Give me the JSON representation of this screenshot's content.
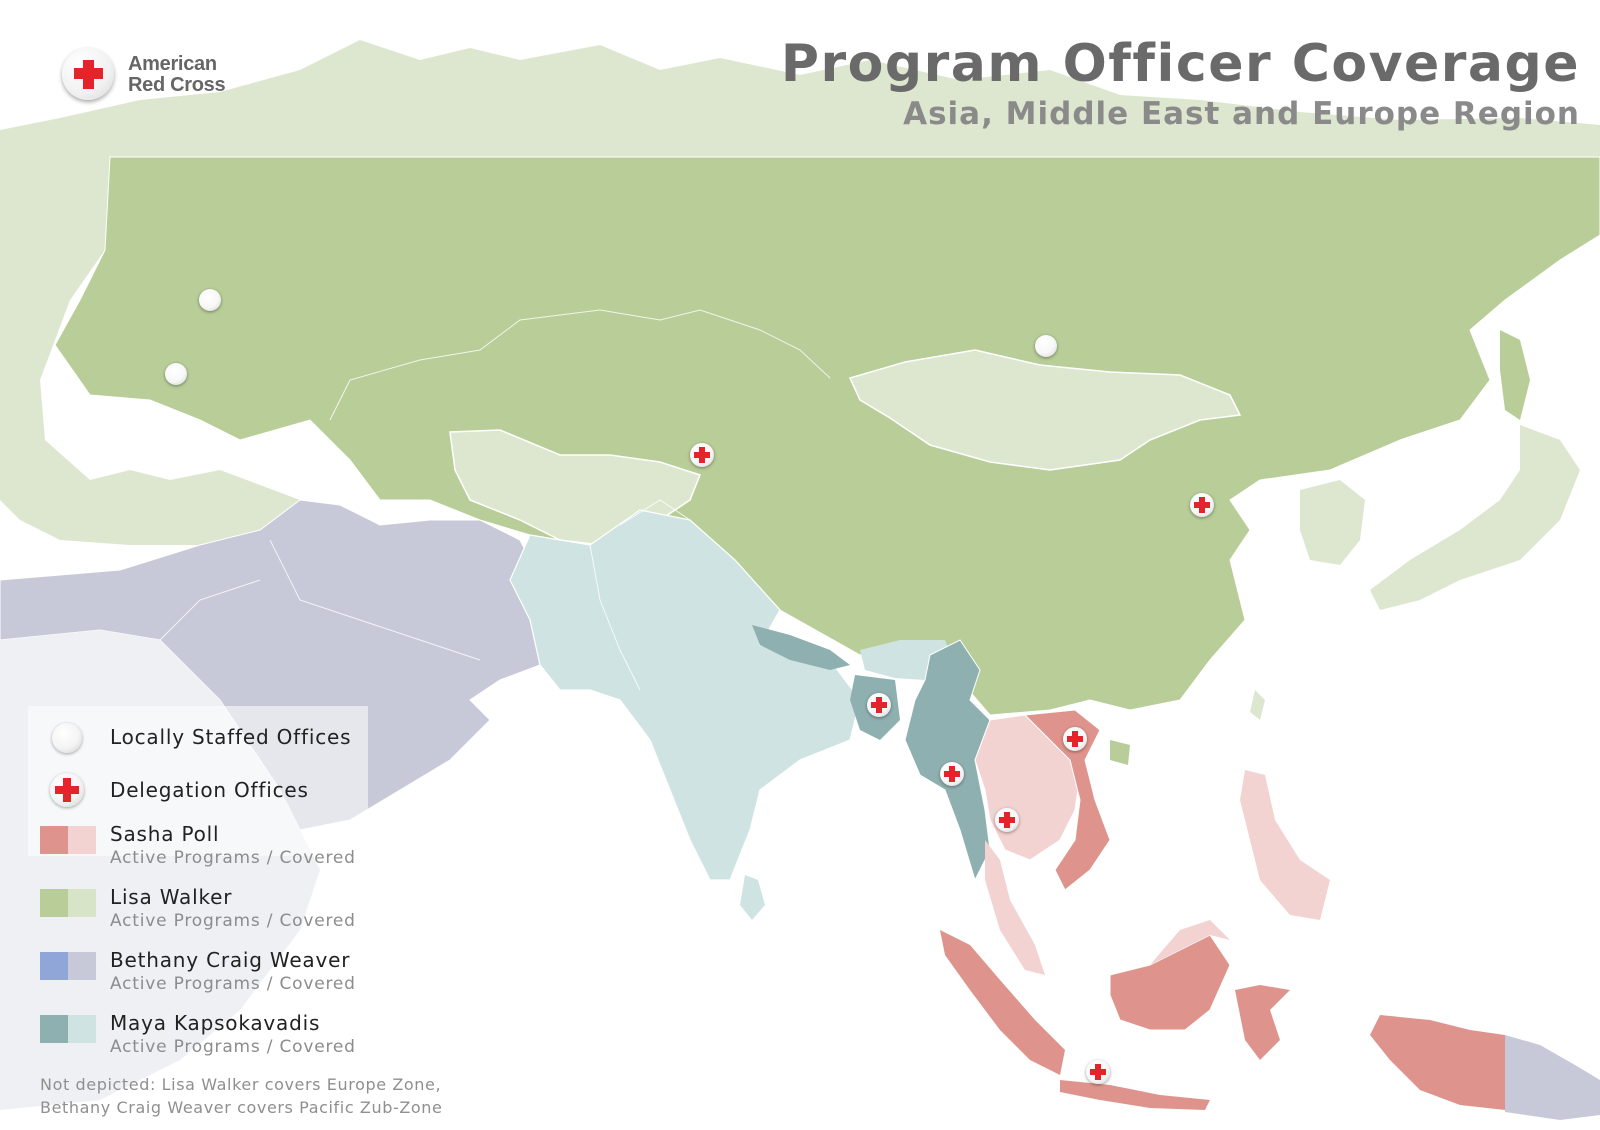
{
  "logo": {
    "name": "American\nRed Cross"
  },
  "header": {
    "title": "Program Officer Coverage",
    "subtitle": "Asia, Middle East and Europe Region"
  },
  "legend": {
    "locally_staffed": "Locally Staffed Offices",
    "delegation": "Delegation Offices",
    "officers": [
      {
        "name": "Sasha Poll",
        "sub": "Active Programs / Covered",
        "active_color": "#de948c",
        "covered_color": "#f2d3d1"
      },
      {
        "name": "Lisa Walker",
        "sub": "Active Programs / Covered",
        "active_color": "#b8cd98",
        "covered_color": "#d8e4c8"
      },
      {
        "name": "Bethany Craig Weaver",
        "sub": "Active Programs / Covered",
        "active_color": "#90a5d8",
        "covered_color": "#c7c9d8"
      },
      {
        "name": "Maya Kapsokavadis",
        "sub": "Active Programs / Covered",
        "active_color": "#8fb0b0",
        "covered_color": "#cfe3e3"
      }
    ]
  },
  "footnote": {
    "line1": "Not depicted: Lisa Walker covers Europe Zone,",
    "line2": "Bethany Craig Weaver covers Pacific Zub-Zone"
  }
}
